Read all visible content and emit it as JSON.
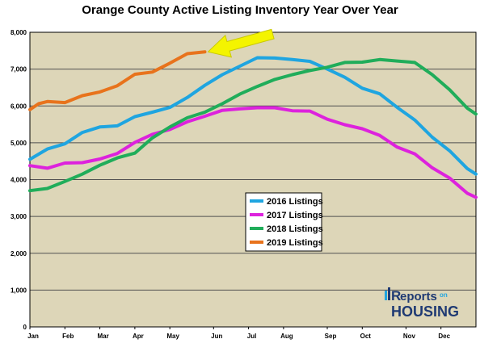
{
  "chart_data": {
    "type": "line",
    "title": "Orange County Active Listing Inventory Year Over Year",
    "xlabel": "",
    "ylabel": "",
    "ylim": [
      0,
      8000
    ],
    "xlim": [
      0,
      51
    ],
    "grid": true,
    "legend_position": "center",
    "month_labels": [
      "Jan",
      "Feb",
      "Mar",
      "Apr",
      "May",
      "Jun",
      "Jul",
      "Aug",
      "Sep",
      "Oct",
      "Nov",
      "Dec"
    ],
    "month_week_index": [
      0,
      4,
      8,
      12,
      16,
      21,
      25,
      29,
      34,
      38,
      43,
      47
    ],
    "y_ticks": [
      0,
      1000,
      2000,
      3000,
      4000,
      5000,
      6000,
      7000,
      8000
    ],
    "y_tick_labels": [
      "0",
      "1,000",
      "2,000",
      "3,000",
      "4,000",
      "5,000",
      "6,000",
      "7,000",
      "8,000"
    ],
    "series": [
      {
        "name": "2016 Listings",
        "color": "#1fa5e0",
        "x": [
          0,
          2,
          4,
          6,
          8,
          10,
          12,
          14,
          16,
          18,
          20,
          22,
          24,
          26,
          28,
          30,
          32,
          34,
          36,
          38,
          40,
          42,
          44,
          46,
          48,
          50,
          51
        ],
        "values": [
          4550,
          4830,
          4970,
          5280,
          5430,
          5460,
          5710,
          5830,
          5960,
          6230,
          6560,
          6850,
          7080,
          7310,
          7300,
          7260,
          7210,
          7000,
          6780,
          6480,
          6330,
          5960,
          5620,
          5150,
          4780,
          4300,
          4150
        ]
      },
      {
        "name": "2017 Listings",
        "color": "#dd22dd",
        "x": [
          0,
          2,
          4,
          6,
          8,
          10,
          12,
          14,
          16,
          18,
          20,
          22,
          24,
          26,
          28,
          30,
          32,
          34,
          36,
          38,
          40,
          42,
          44,
          46,
          48,
          50,
          51
        ],
        "values": [
          4380,
          4310,
          4450,
          4460,
          4560,
          4710,
          5010,
          5230,
          5360,
          5570,
          5720,
          5880,
          5920,
          5950,
          5950,
          5870,
          5860,
          5640,
          5490,
          5380,
          5200,
          4880,
          4700,
          4320,
          4040,
          3630,
          3520
        ]
      },
      {
        "name": "2018 Listings",
        "color": "#20ad5a",
        "x": [
          0,
          2,
          4,
          6,
          8,
          10,
          12,
          14,
          16,
          18,
          20,
          22,
          24,
          26,
          28,
          30,
          32,
          34,
          36,
          38,
          40,
          42,
          44,
          46,
          48,
          50,
          51
        ],
        "values": [
          3700,
          3760,
          3950,
          4150,
          4390,
          4590,
          4720,
          5130,
          5430,
          5680,
          5830,
          6060,
          6320,
          6530,
          6720,
          6850,
          6960,
          7050,
          7180,
          7190,
          7260,
          7220,
          7180,
          6850,
          6440,
          5940,
          5780
        ]
      },
      {
        "name": "2019 Listings",
        "color": "#e8731c",
        "x": [
          0,
          1,
          2,
          4,
          6,
          8,
          10,
          12,
          14,
          16,
          18,
          20
        ],
        "values": [
          5900,
          6060,
          6120,
          6090,
          6280,
          6380,
          6550,
          6860,
          6920,
          7160,
          7420,
          7470
        ]
      }
    ],
    "annotation": {
      "type": "arrow",
      "color": "#f4f400",
      "points_to_series": "2019 Listings"
    }
  },
  "logo": {
    "part1": "R",
    "part2": "eports",
    "part3": "on",
    "part4": "HOUSING",
    "color_main": "#1f3a73",
    "color_accent": "#1fa5e0"
  },
  "colors": {
    "plot_background": "#ddd6b8",
    "gridline": "#505050",
    "arrow": "#f4f400"
  }
}
